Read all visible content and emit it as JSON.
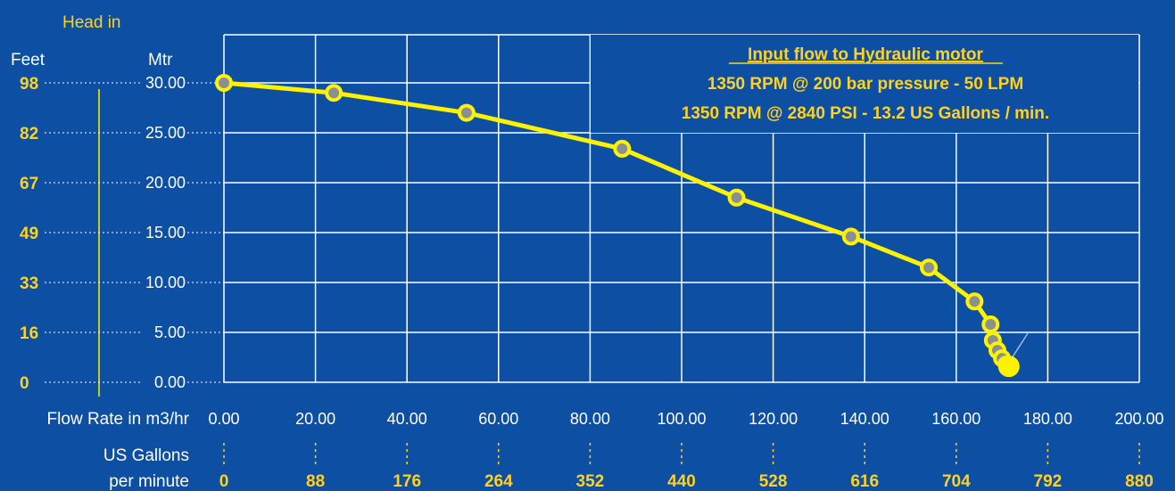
{
  "colors": {
    "background": "#0d4fa3",
    "curve": "#fff200",
    "grid": "#ffffff",
    "accent_text": "#ffd21f",
    "label_text": "#ffffff"
  },
  "labels": {
    "head_in": "Head in",
    "feet": "Feet",
    "mtr": "Mtr",
    "flow_rate": "Flow Rate in m3/hr",
    "us_gallons_line1": "US Gallons",
    "us_gallons_line2": "per minute"
  },
  "annotation": {
    "title": "Input flow to Hydraulic motor",
    "line1": "1350 RPM @ 200 bar pressure - 50 LPM",
    "line2": "1350 RPM @ 2840 PSI - 13.2 US Gallons / min."
  },
  "chart_data": {
    "type": "line",
    "x_unit": "m3/hr",
    "y_unit": "Mtr",
    "xlim": [
      0,
      200
    ],
    "ylim": [
      0,
      30
    ],
    "grid": true,
    "x_ticks": [
      "0.00",
      "20.00",
      "40.00",
      "60.00",
      "80.00",
      "100.00",
      "120.00",
      "140.00",
      "160.00",
      "180.00",
      "200.00"
    ],
    "gpm_ticks": [
      "0",
      "88",
      "176",
      "264",
      "352",
      "440",
      "528",
      "616",
      "704",
      "792",
      "880"
    ],
    "y_ticks_mtr": [
      "0.00",
      "5.00",
      "10.00",
      "15.00",
      "20.00",
      "25.00",
      "30.00"
    ],
    "y_ticks_feet": [
      "0",
      "16",
      "33",
      "49",
      "67",
      "82",
      "98"
    ],
    "series": [
      {
        "x": [
          0,
          24,
          53,
          87,
          112,
          137,
          154,
          164,
          167.5,
          168,
          169,
          170,
          171,
          171.5
        ],
        "y": [
          30,
          29,
          27,
          23.4,
          18.5,
          14.6,
          11.5,
          8.1,
          5.8,
          4.2,
          3.2,
          2.4,
          1.8,
          1.6
        ]
      }
    ]
  }
}
